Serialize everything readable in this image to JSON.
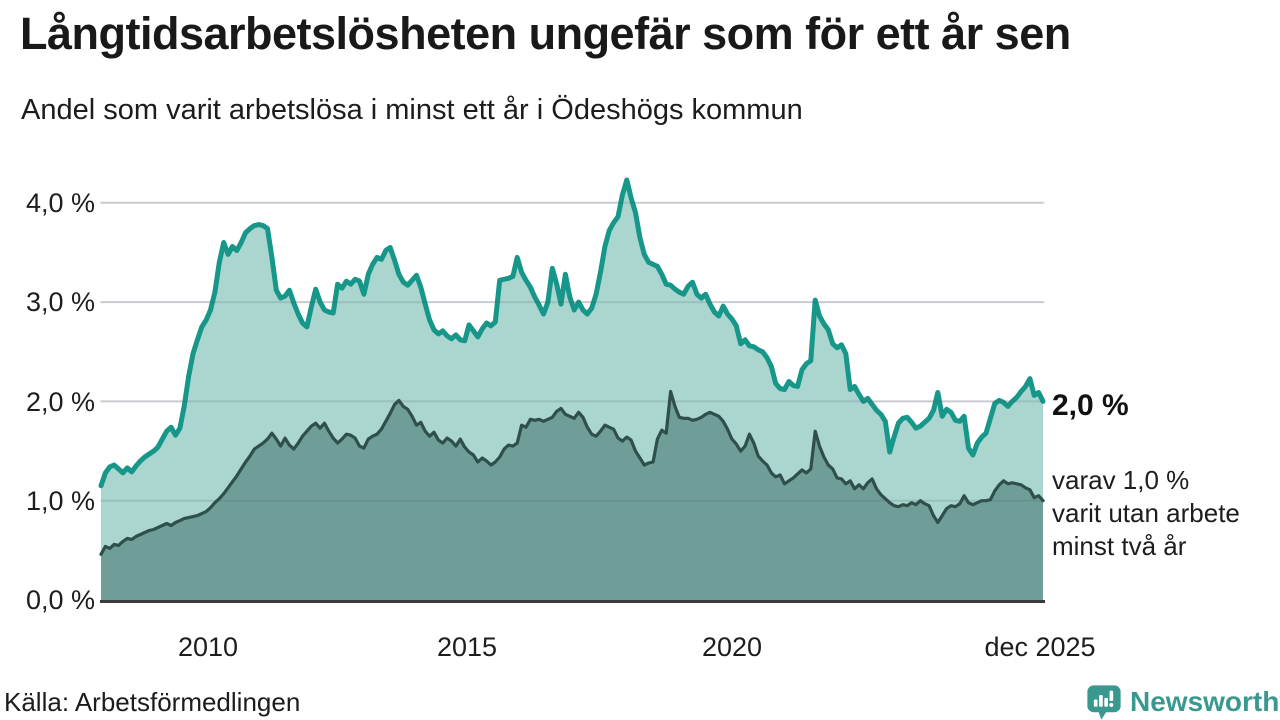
{
  "header": {
    "title": "Långtidsarbetslösheten ungefär som för ett år sen",
    "subtitle": "Andel som varit arbetslösa i minst ett år i Ödeshögs kommun"
  },
  "footer": {
    "source": "Källa: Arbetsförmedlingen",
    "brand": "Newsworthy"
  },
  "colors": {
    "line_1yr": "#17968a",
    "fill_1yr": "#aad6cf",
    "line_2yr": "#2f4f4a",
    "fill_2yr": "#6f9e98",
    "gridline": "#e2e2e7",
    "baseline": "#3a3a3a",
    "brand_teal": "#3a998f"
  },
  "chart_data": {
    "type": "area",
    "unit": "percent",
    "frequency": "monthly",
    "x_start": "2008-01",
    "x_end": "2025-12",
    "ylim": [
      0,
      4.5
    ],
    "grid": "horizontal",
    "y_tick_labels": [
      "4,0 %",
      "3,0 %",
      "2,0 %",
      "1,0 %",
      "0,0 %"
    ],
    "y_tick_values": [
      4,
      3,
      2,
      1,
      0
    ],
    "x_tick_labels": [
      "2010",
      "2015",
      "2020",
      "dec 2025"
    ],
    "annotations": {
      "end_label_primary": "2,0 %",
      "end_label_secondary": [
        "varav 1,0 %",
        "varit utan arbete",
        "minst två år"
      ]
    },
    "series": [
      {
        "id": "arbetslosa-minst-ett-ar",
        "label": "Andel arbetslösa minst ett år",
        "stroke": "#17968a",
        "fill": "#aad6cf",
        "end_value": 2.0,
        "values": [
          1.15,
          1.28,
          1.34,
          1.36,
          1.32,
          1.28,
          1.33,
          1.29,
          1.35,
          1.4,
          1.44,
          1.47,
          1.5,
          1.54,
          1.62,
          1.7,
          1.74,
          1.66,
          1.73,
          1.95,
          2.25,
          2.48,
          2.62,
          2.75,
          2.82,
          2.92,
          3.1,
          3.4,
          3.6,
          3.48,
          3.56,
          3.52,
          3.6,
          3.7,
          3.74,
          3.77,
          3.78,
          3.77,
          3.74,
          3.45,
          3.12,
          3.04,
          3.06,
          3.12,
          2.99,
          2.88,
          2.79,
          2.75,
          2.95,
          3.13,
          3.0,
          2.92,
          2.9,
          2.89,
          3.18,
          3.14,
          3.21,
          3.18,
          3.23,
          3.21,
          3.08,
          3.28,
          3.38,
          3.45,
          3.43,
          3.52,
          3.55,
          3.42,
          3.28,
          3.2,
          3.17,
          3.22,
          3.27,
          3.15,
          2.98,
          2.82,
          2.72,
          2.68,
          2.71,
          2.66,
          2.63,
          2.67,
          2.62,
          2.61,
          2.77,
          2.71,
          2.65,
          2.73,
          2.79,
          2.76,
          2.8,
          3.22,
          3.23,
          3.24,
          3.26,
          3.45,
          3.3,
          3.22,
          3.15,
          3.05,
          2.97,
          2.88,
          3.0,
          3.34,
          3.18,
          2.98,
          3.28,
          3.05,
          2.92,
          3.0,
          2.92,
          2.88,
          2.94,
          3.08,
          3.3,
          3.56,
          3.72,
          3.8,
          3.86,
          4.08,
          4.23,
          4.05,
          3.9,
          3.65,
          3.48,
          3.4,
          3.38,
          3.36,
          3.28,
          3.18,
          3.17,
          3.13,
          3.1,
          3.08,
          3.16,
          3.2,
          3.08,
          3.04,
          3.08,
          2.98,
          2.9,
          2.86,
          2.96,
          2.88,
          2.83,
          2.76,
          2.58,
          2.62,
          2.56,
          2.55,
          2.52,
          2.5,
          2.44,
          2.35,
          2.18,
          2.13,
          2.12,
          2.2,
          2.16,
          2.15,
          2.32,
          2.38,
          2.41,
          3.02,
          2.86,
          2.78,
          2.72,
          2.58,
          2.54,
          2.57,
          2.48,
          2.12,
          2.15,
          2.07,
          2.0,
          2.03,
          1.97,
          1.91,
          1.87,
          1.8,
          1.49,
          1.64,
          1.78,
          1.83,
          1.84,
          1.79,
          1.73,
          1.75,
          1.79,
          1.83,
          1.91,
          2.09,
          1.85,
          1.92,
          1.89,
          1.81,
          1.8,
          1.85,
          1.53,
          1.46,
          1.58,
          1.64,
          1.68,
          1.83,
          1.98,
          2.01,
          1.99,
          1.95,
          2.0,
          2.04,
          2.1,
          2.15,
          2.23,
          2.06,
          2.09,
          2.0
        ]
      },
      {
        "id": "arbetslosa-minst-tva-ar",
        "label": "Andel arbetslösa minst två år",
        "stroke": "#2f4f4a",
        "fill": "#6f9e98",
        "end_value": 1.0,
        "values": [
          0.46,
          0.54,
          0.52,
          0.56,
          0.55,
          0.59,
          0.62,
          0.61,
          0.64,
          0.66,
          0.68,
          0.7,
          0.71,
          0.73,
          0.75,
          0.77,
          0.75,
          0.78,
          0.8,
          0.82,
          0.83,
          0.84,
          0.85,
          0.87,
          0.89,
          0.93,
          0.98,
          1.02,
          1.07,
          1.13,
          1.19,
          1.25,
          1.32,
          1.39,
          1.45,
          1.52,
          1.55,
          1.58,
          1.62,
          1.68,
          1.62,
          1.55,
          1.63,
          1.56,
          1.52,
          1.58,
          1.65,
          1.7,
          1.75,
          1.78,
          1.73,
          1.78,
          1.7,
          1.63,
          1.58,
          1.62,
          1.67,
          1.66,
          1.63,
          1.55,
          1.53,
          1.62,
          1.65,
          1.67,
          1.72,
          1.8,
          1.88,
          1.97,
          2.01,
          1.95,
          1.92,
          1.85,
          1.76,
          1.79,
          1.7,
          1.65,
          1.69,
          1.61,
          1.58,
          1.63,
          1.6,
          1.55,
          1.62,
          1.54,
          1.49,
          1.46,
          1.39,
          1.43,
          1.4,
          1.36,
          1.39,
          1.44,
          1.52,
          1.56,
          1.55,
          1.58,
          1.76,
          1.74,
          1.82,
          1.81,
          1.82,
          1.8,
          1.82,
          1.84,
          1.9,
          1.93,
          1.87,
          1.85,
          1.83,
          1.89,
          1.84,
          1.74,
          1.67,
          1.65,
          1.7,
          1.76,
          1.74,
          1.72,
          1.63,
          1.6,
          1.64,
          1.61,
          1.5,
          1.43,
          1.36,
          1.38,
          1.39,
          1.62,
          1.71,
          1.68,
          2.1,
          1.95,
          1.84,
          1.83,
          1.83,
          1.81,
          1.82,
          1.84,
          1.87,
          1.89,
          1.87,
          1.85,
          1.8,
          1.72,
          1.62,
          1.57,
          1.5,
          1.55,
          1.67,
          1.58,
          1.45,
          1.4,
          1.36,
          1.28,
          1.24,
          1.26,
          1.17,
          1.2,
          1.23,
          1.27,
          1.31,
          1.28,
          1.32,
          1.7,
          1.55,
          1.44,
          1.36,
          1.32,
          1.23,
          1.22,
          1.17,
          1.2,
          1.12,
          1.16,
          1.12,
          1.18,
          1.22,
          1.12,
          1.06,
          1.02,
          0.98,
          0.95,
          0.94,
          0.96,
          0.95,
          0.98,
          0.96,
          1.0,
          0.97,
          0.95,
          0.85,
          0.78,
          0.85,
          0.92,
          0.95,
          0.94,
          0.97,
          1.05,
          0.98,
          0.96,
          0.98,
          1.0,
          1.0,
          1.01,
          1.1,
          1.16,
          1.2,
          1.17,
          1.18,
          1.17,
          1.16,
          1.13,
          1.11,
          1.03,
          1.05,
          1.0
        ]
      }
    ]
  }
}
